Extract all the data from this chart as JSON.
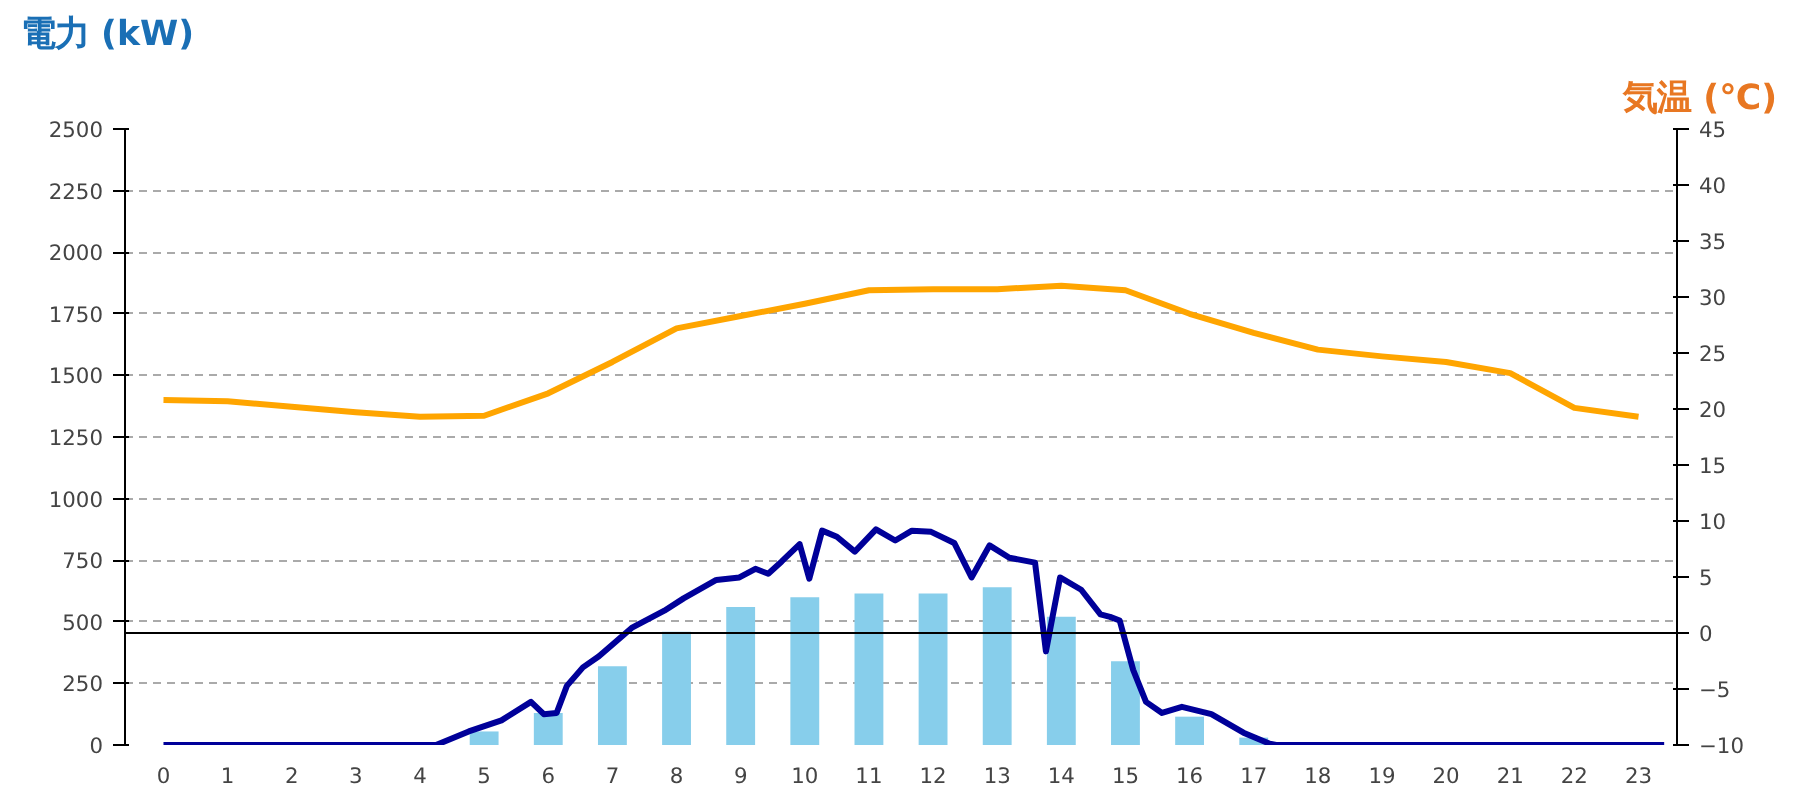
{
  "chart_data": {
    "type": "bar",
    "ylabel": "電力 (kW)",
    "y2label": "気温 (℃)",
    "xlim": [
      -0.6,
      23.6
    ],
    "xticks": [
      0,
      1,
      2,
      3,
      4,
      5,
      6,
      7,
      8,
      9,
      10,
      11,
      12,
      13,
      14,
      15,
      16,
      17,
      18,
      19,
      20,
      21,
      22,
      23
    ],
    "ylim": [
      0,
      2500
    ],
    "yticks": [
      0,
      250,
      500,
      750,
      1000,
      1250,
      1500,
      1750,
      2000,
      2250,
      2500
    ],
    "y2lim": [
      -10,
      45
    ],
    "y2ticks": [
      -10,
      -5,
      0,
      5,
      10,
      15,
      20,
      25,
      30,
      35,
      40,
      45
    ],
    "grid": "y",
    "ref_lines": [
      {
        "axis": "y2",
        "value": 0,
        "color": "#000000"
      }
    ],
    "series": [
      {
        "color": "#87ceeb",
        "x": [
          0,
          1,
          2,
          3,
          4,
          5,
          6,
          7,
          8,
          9,
          10,
          11,
          12,
          13,
          14,
          15,
          16,
          17,
          18,
          19,
          20,
          21,
          22,
          23
        ],
        "values": [
          0,
          0,
          0,
          0,
          0,
          55,
          130,
          320,
          460,
          560,
          600,
          615,
          615,
          640,
          520,
          340,
          115,
          30,
          0,
          0,
          0,
          0,
          0,
          0
        ]
      },
      {
        "type": "line",
        "color": "#000099",
        "x": [
          0,
          4.25,
          4.76,
          5.27,
          5.73,
          5.93,
          6.13,
          6.29,
          6.54,
          6.79,
          7.3,
          7.81,
          8.11,
          8.62,
          8.98,
          9.23,
          9.43,
          9.64,
          9.92,
          10.07,
          10.27,
          10.5,
          10.78,
          11.11,
          11.41,
          11.67,
          11.97,
          12.33,
          12.6,
          12.88,
          13.19,
          13.59,
          13.76,
          13.98,
          14.31,
          14.61,
          14.76,
          14.91,
          15.12,
          15.32,
          15.57,
          15.88,
          16.34,
          16.84,
          17.25,
          17.35,
          23.4
        ],
        "values": [
          0,
          0,
          55,
          100,
          175,
          125,
          130,
          240,
          315,
          360,
          475,
          545,
          595,
          670,
          680,
          715,
          695,
          745,
          815,
          675,
          870,
          845,
          785,
          875,
          830,
          870,
          865,
          820,
          680,
          810,
          760,
          740,
          380,
          680,
          630,
          530,
          520,
          505,
          305,
          175,
          130,
          155,
          125,
          50,
          5,
          0,
          0
        ]
      },
      {
        "type": "line",
        "axis": "y2",
        "color": "#ffa500",
        "x": [
          0,
          1,
          2,
          3,
          4,
          5,
          6,
          7,
          8,
          9,
          10,
          11,
          12,
          13,
          14,
          15,
          16,
          17,
          18,
          19,
          20,
          21,
          22,
          23
        ],
        "values": [
          20.8,
          20.7,
          20.2,
          19.7,
          19.3,
          19.4,
          21.4,
          24.2,
          27.2,
          28.3,
          29.4,
          30.6,
          30.7,
          30.7,
          31.0,
          30.6,
          28.5,
          26.8,
          25.3,
          24.7,
          24.2,
          23.2,
          20.1,
          19.3
        ]
      }
    ]
  }
}
